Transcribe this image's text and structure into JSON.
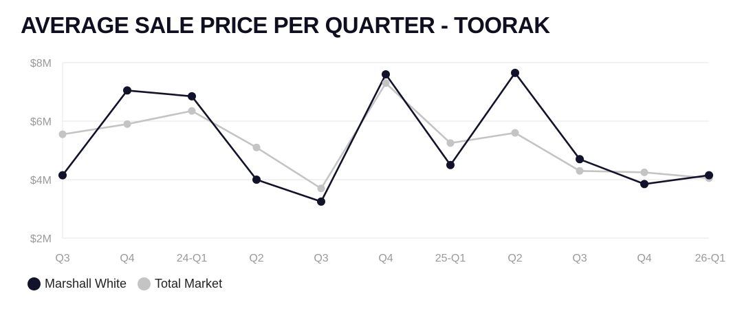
{
  "title": "AVERAGE SALE PRICE PER QUARTER - TOORAK",
  "chart_data": {
    "type": "line",
    "title": "AVERAGE SALE PRICE PER QUARTER - TOORAK",
    "categories": [
      "Q3",
      "Q4",
      "24-Q1",
      "Q2",
      "Q3",
      "Q4",
      "25-Q1",
      "Q2",
      "Q3",
      "Q4",
      "26-Q1"
    ],
    "y_ticks": [
      "$2M",
      "$4M",
      "$6M",
      "$8M"
    ],
    "ylim": [
      2,
      8
    ],
    "grid": "horizontal",
    "legend_position": "bottom-left",
    "series": [
      {
        "name": "Marshall White",
        "color": "#12122a",
        "values": [
          4.15,
          7.05,
          6.85,
          4.0,
          3.25,
          7.6,
          4.5,
          7.65,
          4.7,
          3.85,
          4.15
        ]
      },
      {
        "name": "Total Market",
        "color": "#c4c4c4",
        "values": [
          5.55,
          5.9,
          6.35,
          5.1,
          3.7,
          7.3,
          5.25,
          5.6,
          4.3,
          4.25,
          4.05
        ]
      }
    ]
  }
}
